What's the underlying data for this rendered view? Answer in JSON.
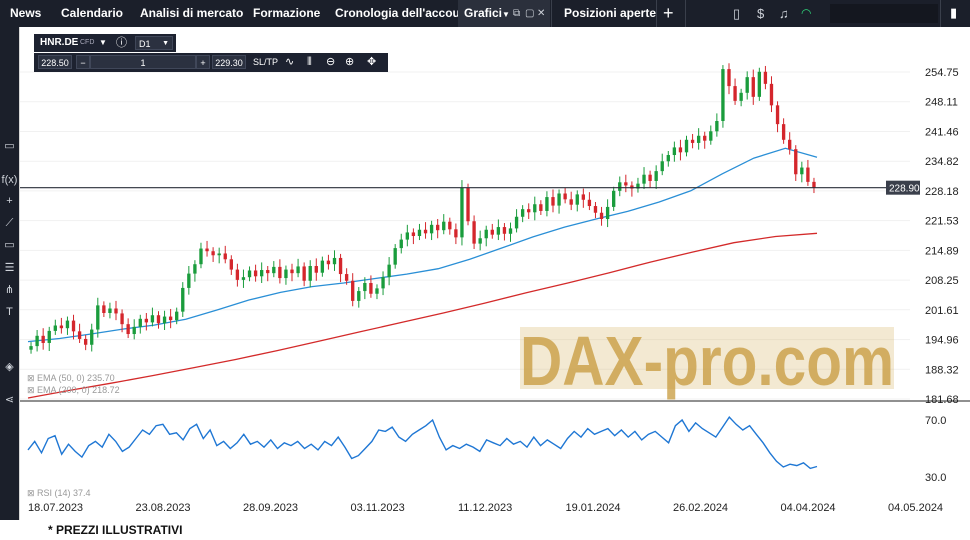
{
  "topbar": {
    "news": "News",
    "calendar": "Calendario",
    "market_analysis": "Analisi di mercato",
    "education": "Formazione",
    "account_history": "Cronologia dell'account",
    "charts": "Grafici",
    "open_positions": "Posizioni aperte",
    "new_tab": "+"
  },
  "instrument": {
    "symbol": "HNR.DE",
    "type": "CFD",
    "timeframe": "D1"
  },
  "trade_panel": {
    "sell_price": "228.50",
    "volume": "1",
    "buy_price": "229.30",
    "sltp_label": "SL/TP"
  },
  "sidebar_icons": [
    "chart-type-icon",
    "function-icon",
    "crosshair-icon",
    "trendline-icon",
    "rectangle-icon",
    "fibonacci-icon",
    "pitchfork-icon",
    "text-icon",
    "layers-icon",
    "share-icon"
  ],
  "indicators": {
    "ema50": "EMA (50, 0) 235.70",
    "ema200": "EMA (200, 0) 218.72",
    "rsi": "RSI (14) 37.4"
  },
  "current_price_label": "228.90",
  "watermark": "DAX-pro.com",
  "footer_note": "* PREZZI ILLUSTRATIVI",
  "colors": {
    "up": "#1a9c3c",
    "down": "#d4262c",
    "ema50": "#2a8fd6",
    "ema200": "#d32a2a",
    "rsi": "#1f77d4",
    "topbar": "#1b1f2a"
  },
  "chart_data": {
    "type": "candlestick",
    "price_axis": [
      "254.75",
      "248.11",
      "241.46",
      "234.82",
      "228.18",
      "221.53",
      "214.89",
      "208.25",
      "201.61",
      "194.96",
      "188.32",
      "181.68"
    ],
    "rsi_axis": [
      "70.0",
      "30.0"
    ],
    "x_labels": [
      "18.07.2023",
      "23.08.2023",
      "28.09.2023",
      "03.11.2023",
      "11.12.2023",
      "19.01.2024",
      "26.02.2024",
      "04.04.2024",
      "04.05.2024"
    ],
    "ylim": [
      181.68,
      254.75
    ],
    "rsi_ylim": [
      30,
      70
    ],
    "closes": [
      193.5,
      195.8,
      194.2,
      196.9,
      198.1,
      197.5,
      199.2,
      196.8,
      195.1,
      193.8,
      197.2,
      202.6,
      200.9,
      201.9,
      200.8,
      198.4,
      196.2,
      197.8,
      199.6,
      198.8,
      200.4,
      198.6,
      200.1,
      199.3,
      201.2,
      206.5,
      209.7,
      211.8,
      215.3,
      214.7,
      213.8,
      214.2,
      212.9,
      210.6,
      208.3,
      208.9,
      210.4,
      209.1,
      210.5,
      209.8,
      211.2,
      208.7,
      210.6,
      209.8,
      211.3,
      208.1,
      211.4,
      209.9,
      212.6,
      211.8,
      213.2,
      209.6,
      208.1,
      203.6,
      205.8,
      207.6,
      205.2,
      206.4,
      208.9,
      211.7,
      215.4,
      217.3,
      218.9,
      218.1,
      219.5,
      218.7,
      220.6,
      219.4,
      221.3,
      219.6,
      217.8,
      228.9,
      221.4,
      216.4,
      217.6,
      219.5,
      218.4,
      220.1,
      218.6,
      219.8,
      222.4,
      224.1,
      223.4,
      225.2,
      223.7,
      226.8,
      224.9,
      227.6,
      226.3,
      225.1,
      227.4,
      226.2,
      224.8,
      223.3,
      221.9,
      224.6,
      228.2,
      230.1,
      229.4,
      228.7,
      229.8,
      231.8,
      230.4,
      232.6,
      234.8,
      236.2,
      237.9,
      236.8,
      239.6,
      238.9,
      240.5,
      239.4,
      241.5,
      243.8,
      255.4,
      251.6,
      248.3,
      250.1,
      253.6,
      249.2,
      254.8,
      252.1,
      247.3,
      243.1,
      239.6,
      237.5,
      231.9,
      233.4,
      230.2,
      228.9
    ],
    "ema50": [
      194.5,
      195.2,
      196.2,
      197.3,
      198.2,
      199.5,
      201.6,
      203.8,
      205.5,
      206.8,
      207.6,
      208.6,
      209.6,
      210.8,
      212.9,
      215.4,
      217.9,
      220.1,
      221.9,
      223.6,
      225.7,
      228.2,
      232.0,
      235.5,
      237.7,
      235.7
    ],
    "ema200": [
      181.9,
      183.6,
      185.2,
      186.9,
      188.7,
      190.5,
      192.5,
      194.6,
      196.7,
      198.8,
      200.9,
      203.1,
      205.4,
      207.6,
      209.9,
      212.3,
      214.5,
      216.6,
      218.0,
      218.7
    ],
    "rsi": [
      49,
      55,
      47,
      57,
      59,
      46,
      53,
      48,
      44,
      52,
      55,
      51,
      60,
      55,
      48,
      51,
      57,
      63,
      60,
      66,
      67,
      60,
      61,
      56,
      64,
      67,
      57,
      63,
      52,
      55,
      50,
      54,
      60,
      53,
      55,
      51,
      56,
      50,
      54,
      52,
      55,
      50,
      53,
      49,
      55,
      52,
      58,
      51,
      43,
      45,
      50,
      55,
      63,
      62,
      65,
      58,
      55,
      60,
      63,
      66,
      70,
      58,
      49,
      52,
      50,
      53,
      51,
      48,
      56,
      54,
      52,
      57,
      53,
      55,
      51,
      58,
      52,
      56,
      53,
      50,
      57,
      62,
      58,
      64,
      60,
      62,
      64,
      59,
      63,
      58,
      62,
      56,
      60,
      62,
      58,
      54,
      66,
      70,
      62,
      68,
      64,
      61,
      58,
      65,
      72,
      67,
      63,
      66,
      60,
      54,
      47,
      41,
      37,
      39,
      38,
      40,
      36,
      37.4
    ]
  }
}
